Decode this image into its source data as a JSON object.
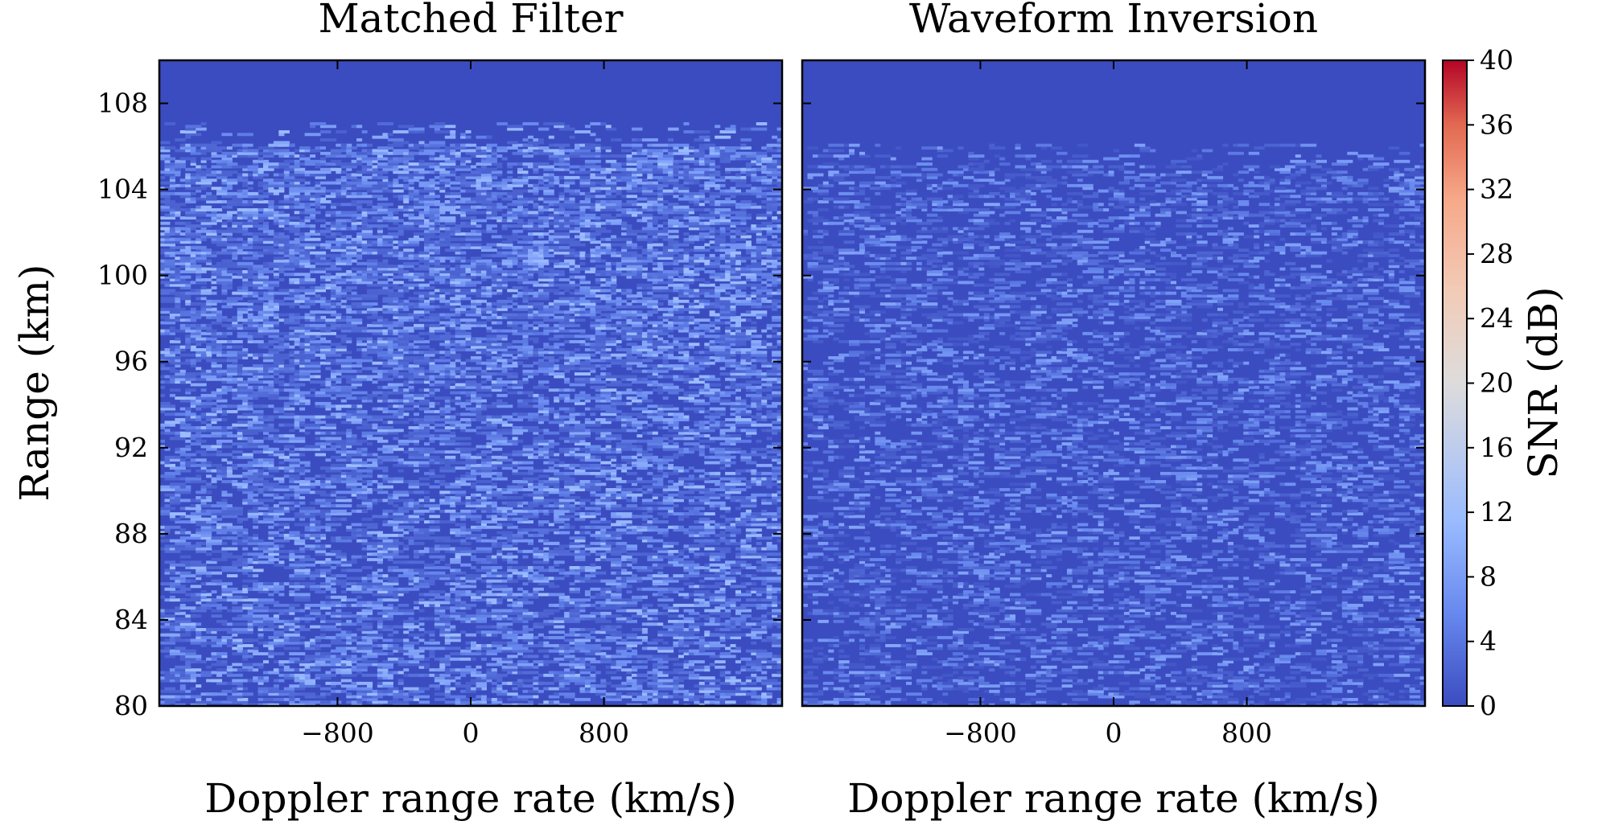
{
  "chart_data": [
    {
      "type": "heatmap",
      "title": "Matched Filter",
      "xlabel": "Doppler range rate (km/s)",
      "ylabel": "Range (km)",
      "xlim": [
        -1870,
        1870
      ],
      "ylim": [
        80,
        110
      ],
      "x_ticks": [
        -800,
        0,
        800
      ],
      "x_tick_labels": [
        "−800",
        "0",
        "800"
      ],
      "y_ticks": [
        80,
        84,
        88,
        92,
        96,
        100,
        104,
        108
      ],
      "y_tick_labels": [
        "80",
        "84",
        "88",
        "92",
        "96",
        "100",
        "104",
        "108"
      ],
      "noise_floor_db": 0,
      "speckle_db_range": [
        2,
        12
      ],
      "speckle_top_range_km": 107,
      "speckle_dense_band_km": [
        95,
        106
      ],
      "signal": "none",
      "grid": false
    },
    {
      "type": "heatmap",
      "title": "Waveform Inversion",
      "xlabel": "Doppler range rate (km/s)",
      "xlim": [
        -1870,
        1870
      ],
      "ylim": [
        80,
        110
      ],
      "x_ticks": [
        -800,
        0,
        800
      ],
      "x_tick_labels": [
        "−800",
        "0",
        "800"
      ],
      "y_ticks": [
        80,
        84,
        88,
        92,
        96,
        100,
        104,
        108
      ],
      "noise_floor_db": 0,
      "speckle_db_range": [
        1,
        9
      ],
      "speckle_top_range_km": 106,
      "signal": "none",
      "grid": false
    }
  ],
  "colorbar": {
    "label": "SNR (dB)",
    "range": [
      0,
      40
    ],
    "ticks": [
      0,
      4,
      8,
      12,
      16,
      20,
      24,
      28,
      32,
      36,
      40
    ],
    "tick_labels": [
      "0",
      "4",
      "8",
      "12",
      "16",
      "20",
      "24",
      "28",
      "32",
      "36",
      "40"
    ],
    "colormap": "coolwarm",
    "colors": [
      "#3b4cc0",
      "#6788ee",
      "#9abbff",
      "#c9d7f0",
      "#edd1c2",
      "#f7a889",
      "#e26952",
      "#b40426"
    ]
  }
}
